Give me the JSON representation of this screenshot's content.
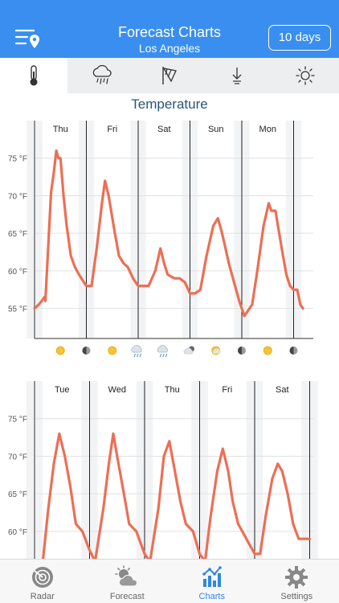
{
  "header": {
    "title": "Forecast Charts",
    "location": "Los Angeles",
    "range_button": "10 days"
  },
  "tabs": [
    {
      "name": "temperature",
      "icon": "thermometer-icon",
      "active": true
    },
    {
      "name": "precipitation",
      "icon": "rain-cloud-icon",
      "active": false
    },
    {
      "name": "wind",
      "icon": "windsock-icon",
      "active": false
    },
    {
      "name": "pressure",
      "icon": "pressure-arrow-icon",
      "active": false
    },
    {
      "name": "uv",
      "icon": "sun-icon",
      "active": false
    }
  ],
  "section_title": "Temperature",
  "colors": {
    "accent": "#3a8ef0",
    "line": "#ec6f55",
    "night_band": "#f2f3f5",
    "tab_active": "#2f86e8"
  },
  "chart_data": [
    {
      "type": "line",
      "days": [
        "Thu",
        "Fri",
        "Sat",
        "Sun",
        "Mon"
      ],
      "ylabel_unit": "°F",
      "y_ticks": [
        "75 °F",
        "70 °F",
        "65 °F",
        "60 °F",
        "55 °F"
      ],
      "ylim": [
        51,
        80
      ],
      "series": [
        {
          "values": [
            [
              0,
              55
            ],
            [
              0.08,
              55.5
            ],
            [
              0.14,
              56
            ],
            [
              0.19,
              56.5
            ],
            [
              0.21,
              56
            ],
            [
              0.27,
              64
            ],
            [
              0.32,
              70.5
            ],
            [
              0.37,
              73
            ],
            [
              0.42,
              76
            ],
            [
              0.46,
              75
            ],
            [
              0.5,
              75
            ],
            [
              0.56,
              70
            ],
            [
              0.62,
              66
            ],
            [
              0.7,
              62
            ],
            [
              0.78,
              60.5
            ],
            [
              0.86,
              59.5
            ],
            [
              0.95,
              58.5
            ],
            [
              1.0,
              58
            ],
            [
              1.05,
              58
            ],
            [
              1.1,
              58
            ],
            [
              1.2,
              63
            ],
            [
              1.3,
              69
            ],
            [
              1.36,
              72
            ],
            [
              1.43,
              70
            ],
            [
              1.55,
              65
            ],
            [
              1.63,
              62
            ],
            [
              1.72,
              61
            ],
            [
              1.8,
              60.5
            ],
            [
              1.9,
              59
            ],
            [
              2.0,
              58
            ],
            [
              2.1,
              58
            ],
            [
              2.2,
              58
            ],
            [
              2.33,
              60
            ],
            [
              2.43,
              63
            ],
            [
              2.5,
              61
            ],
            [
              2.57,
              59.5
            ],
            [
              2.7,
              59
            ],
            [
              2.8,
              59
            ],
            [
              2.9,
              58.5
            ],
            [
              3.0,
              57
            ],
            [
              3.1,
              57
            ],
            [
              3.2,
              57.5
            ],
            [
              3.32,
              62
            ],
            [
              3.45,
              66
            ],
            [
              3.54,
              67
            ],
            [
              3.62,
              65
            ],
            [
              3.75,
              61
            ],
            [
              3.85,
              58.5
            ],
            [
              3.95,
              56
            ],
            [
              4.05,
              54
            ],
            [
              4.2,
              55.5
            ],
            [
              4.3,
              60
            ],
            [
              4.42,
              66
            ],
            [
              4.52,
              69
            ],
            [
              4.57,
              68
            ],
            [
              4.65,
              68
            ],
            [
              4.77,
              63
            ],
            [
              4.86,
              59.5
            ],
            [
              4.93,
              58
            ],
            [
              5.0,
              57.5
            ],
            [
              5.07,
              57.5
            ],
            [
              5.13,
              55.5
            ],
            [
              5.18,
              55
            ]
          ]
        }
      ],
      "conditions": [
        {
          "at": 0.5,
          "icon": "sunny-icon"
        },
        {
          "at": 1.0,
          "icon": "moon-icon"
        },
        {
          "at": 1.5,
          "icon": "sunny-icon"
        },
        {
          "at": 2.0,
          "icon": "rain-icon"
        },
        {
          "at": 2.5,
          "icon": "snow-rain-icon"
        },
        {
          "at": 3.0,
          "icon": "night-cloud-icon"
        },
        {
          "at": 3.5,
          "icon": "partly-sunny-icon"
        },
        {
          "at": 4.0,
          "icon": "moon-icon"
        },
        {
          "at": 4.5,
          "icon": "sunny-icon"
        },
        {
          "at": 5.0,
          "icon": "moon-icon"
        }
      ]
    },
    {
      "type": "line",
      "days": [
        "Tue",
        "Wed",
        "Thu",
        "Fri",
        "Sat"
      ],
      "ylabel_unit": "°F",
      "y_ticks": [
        "75 °F",
        "70 °F",
        "65 °F",
        "60 °F"
      ],
      "ylim": [
        51,
        80
      ],
      "series": [
        {
          "values": [
            [
              0.15,
              56
            ],
            [
              0.25,
              63
            ],
            [
              0.35,
              69
            ],
            [
              0.45,
              73
            ],
            [
              0.55,
              70
            ],
            [
              0.65,
              66
            ],
            [
              0.75,
              61
            ],
            [
              0.87,
              60
            ],
            [
              1.0,
              57.5
            ],
            [
              1.1,
              56
            ],
            [
              1.25,
              63
            ],
            [
              1.35,
              69
            ],
            [
              1.43,
              73
            ],
            [
              1.5,
              70
            ],
            [
              1.6,
              66
            ],
            [
              1.72,
              61
            ],
            [
              1.85,
              60
            ],
            [
              2.0,
              57
            ],
            [
              2.1,
              56
            ],
            [
              2.25,
              63
            ],
            [
              2.35,
              70
            ],
            [
              2.45,
              72
            ],
            [
              2.55,
              68
            ],
            [
              2.65,
              64
            ],
            [
              2.75,
              61
            ],
            [
              2.88,
              60
            ],
            [
              3.0,
              57
            ],
            [
              3.1,
              56
            ],
            [
              3.2,
              62
            ],
            [
              3.32,
              68
            ],
            [
              3.42,
              71
            ],
            [
              3.52,
              68
            ],
            [
              3.6,
              64
            ],
            [
              3.7,
              61
            ],
            [
              3.85,
              59
            ],
            [
              4.0,
              57
            ],
            [
              4.1,
              57
            ],
            [
              4.2,
              62
            ],
            [
              4.32,
              67
            ],
            [
              4.42,
              69
            ],
            [
              4.5,
              68
            ],
            [
              4.6,
              65
            ],
            [
              4.7,
              61
            ],
            [
              4.8,
              59
            ],
            [
              4.9,
              59
            ],
            [
              5.0,
              59
            ]
          ]
        }
      ]
    }
  ],
  "bottom_nav": [
    {
      "label": "Radar",
      "icon": "radar-icon",
      "active": false
    },
    {
      "label": "Forecast",
      "icon": "forecast-icon",
      "active": false
    },
    {
      "label": "Charts",
      "icon": "charts-icon",
      "active": true
    },
    {
      "label": "Settings",
      "icon": "gear-icon",
      "active": false
    }
  ]
}
